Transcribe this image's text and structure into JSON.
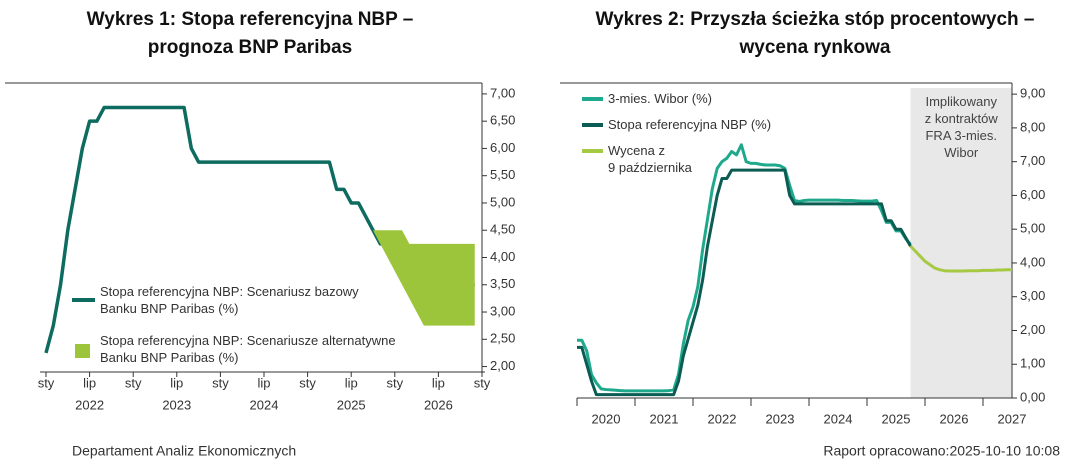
{
  "chart_data": [
    {
      "type": "line",
      "title": "Wykres 1: Stopa referencyjna NBP –\nprognoza BNP Paribas",
      "xlim": [
        "2022-01",
        "2027-01"
      ],
      "ylim": [
        1.9,
        7.2
      ],
      "yticks": [
        {
          "value": 2,
          "label": "2,00"
        },
        {
          "value": 2.5,
          "label": "2,50"
        },
        {
          "value": 3,
          "label": "3,00"
        },
        {
          "value": 3.5,
          "label": "3,50"
        },
        {
          "value": 4,
          "label": "4,00"
        },
        {
          "value": 4.5,
          "label": "4,50"
        },
        {
          "value": 5,
          "label": "5,00"
        },
        {
          "value": 5.5,
          "label": "5,50"
        },
        {
          "value": 6,
          "label": "6,00"
        },
        {
          "value": 6.5,
          "label": "6,50"
        },
        {
          "value": 7,
          "label": "7,00"
        }
      ],
      "xticks": [
        {
          "value": "2022-01",
          "label": "sty"
        },
        {
          "value": "2022-07",
          "label": "lip"
        },
        {
          "value": "2023-01",
          "label": "sty"
        },
        {
          "value": "2023-07",
          "label": "lip"
        },
        {
          "value": "2024-01",
          "label": "sty"
        },
        {
          "value": "2024-07",
          "label": "lip"
        },
        {
          "value": "2025-01",
          "label": "sty"
        },
        {
          "value": "2025-07",
          "label": "lip"
        },
        {
          "value": "2026-01",
          "label": "sty"
        },
        {
          "value": "2026-07",
          "label": "lip"
        },
        {
          "value": "2027-01",
          "label": "sty"
        }
      ],
      "xyears": [
        {
          "value": "2022-07",
          "label": "2022"
        },
        {
          "value": "2023-07",
          "label": "2023"
        },
        {
          "value": "2024-07",
          "label": "2024"
        },
        {
          "value": "2025-07",
          "label": "2025"
        },
        {
          "value": "2026-07",
          "label": "2026"
        }
      ],
      "series": [
        {
          "name": "Stopa referencyjna NBP: Scenariusz bazowy\nBanku BNP Paribas (%)",
          "color": "#0d6b5f",
          "x": [
            "2022-01",
            "2022-02",
            "2022-03",
            "2022-04",
            "2022-05",
            "2022-06",
            "2022-07",
            "2022-08",
            "2022-09",
            "2022-10",
            "2022-11",
            "2022-12",
            "2023-01",
            "2023-02",
            "2023-03",
            "2023-04",
            "2023-05",
            "2023-06",
            "2023-07",
            "2023-08",
            "2023-09",
            "2023-10",
            "2023-11",
            "2023-12",
            "2024-01",
            "2024-02",
            "2024-03",
            "2024-04",
            "2024-05",
            "2024-06",
            "2024-07",
            "2024-08",
            "2024-09",
            "2024-10",
            "2024-11",
            "2024-12",
            "2025-01",
            "2025-02",
            "2025-03",
            "2025-04",
            "2025-05",
            "2025-06",
            "2025-07",
            "2025-08",
            "2025-09",
            "2025-10",
            "2025-11",
            "2025-12",
            "2026-01",
            "2026-02",
            "2026-03",
            "2026-04",
            "2026-05",
            "2026-06",
            "2026-07",
            "2026-08",
            "2026-09",
            "2026-10",
            "2026-11",
            "2026-12"
          ],
          "values": [
            2.25,
            2.75,
            3.5,
            4.5,
            5.25,
            6,
            6.5,
            6.5,
            6.75,
            6.75,
            6.75,
            6.75,
            6.75,
            6.75,
            6.75,
            6.75,
            6.75,
            6.75,
            6.75,
            6.75,
            6,
            5.75,
            5.75,
            5.75,
            5.75,
            5.75,
            5.75,
            5.75,
            5.75,
            5.75,
            5.75,
            5.75,
            5.75,
            5.75,
            5.75,
            5.75,
            5.75,
            5.75,
            5.75,
            5.75,
            5.25,
            5.25,
            5,
            5,
            4.75,
            4.5,
            4.25,
            4.25,
            4,
            4,
            3.75,
            3.75,
            3.75,
            3.5,
            3.5,
            3.5,
            3.5,
            3.5,
            3.5,
            3.5
          ]
        },
        {
          "name": "Stopa referencyjna NBP: Scenariusze alternatywne\nBanku BNP Paribas (%)",
          "color": "#9dc53b",
          "x": [
            "2025-10",
            "2025-11",
            "2025-12",
            "2026-01",
            "2026-02",
            "2026-03",
            "2026-04",
            "2026-05",
            "2026-06",
            "2026-07",
            "2026-08",
            "2026-09",
            "2026-10",
            "2026-11",
            "2026-12"
          ],
          "upper": [
            4.5,
            4.5,
            4.5,
            4.5,
            4.5,
            4.25,
            4.25,
            4.25,
            4.25,
            4.25,
            4.25,
            4.25,
            4.25,
            4.25,
            4.25
          ],
          "lower": [
            4.5,
            4.25,
            4,
            3.75,
            3.5,
            3.25,
            3,
            2.75,
            2.75,
            2.75,
            2.75,
            2.75,
            2.75,
            2.75,
            2.75
          ]
        }
      ]
    },
    {
      "type": "line",
      "title": "Wykres 2: Przyszła ścieżka stóp procentowych –\nwycena rynkowa",
      "xlim": [
        "2020-01",
        "2027-07"
      ],
      "ylim": [
        0,
        9.33
      ],
      "yticks": [
        {
          "value": 0,
          "label": "0,00"
        },
        {
          "value": 1,
          "label": "1,00"
        },
        {
          "value": 2,
          "label": "2,00"
        },
        {
          "value": 3,
          "label": "3,00"
        },
        {
          "value": 4,
          "label": "4,00"
        },
        {
          "value": 5,
          "label": "5,00"
        },
        {
          "value": 6,
          "label": "6,00"
        },
        {
          "value": 7,
          "label": "7,00"
        },
        {
          "value": 8,
          "label": "8,00"
        },
        {
          "value": 9,
          "label": "9,00"
        }
      ],
      "xticks": [
        {
          "value": "2020-07",
          "label": "2020"
        },
        {
          "value": "2021-07",
          "label": "2021"
        },
        {
          "value": "2022-07",
          "label": "2022"
        },
        {
          "value": "2023-07",
          "label": "2023"
        },
        {
          "value": "2024-07",
          "label": "2024"
        },
        {
          "value": "2025-07",
          "label": "2025"
        },
        {
          "value": "2026-07",
          "label": "2026"
        },
        {
          "value": "2027-07",
          "label": "2027"
        }
      ],
      "shade_from": "2025-10",
      "shade_color": "#e8e8e8",
      "annotation": "Implikowany\nz kontraktów\nFRA 3-mies.\nWibor",
      "series": [
        {
          "name": "3-mies. Wibor (%)",
          "color": "#1fa98c",
          "x": [
            "2020-01",
            "2020-02",
            "2020-03",
            "2020-04",
            "2020-05",
            "2020-06",
            "2020-07",
            "2020-08",
            "2020-09",
            "2020-10",
            "2020-11",
            "2020-12",
            "2021-01",
            "2021-02",
            "2021-03",
            "2021-04",
            "2021-05",
            "2021-06",
            "2021-07",
            "2021-08",
            "2021-09",
            "2021-10",
            "2021-11",
            "2021-12",
            "2022-01",
            "2022-02",
            "2022-03",
            "2022-04",
            "2022-05",
            "2022-06",
            "2022-07",
            "2022-08",
            "2022-09",
            "2022-10",
            "2022-11",
            "2022-12",
            "2023-01",
            "2023-02",
            "2023-03",
            "2023-04",
            "2023-05",
            "2023-06",
            "2023-07",
            "2023-08",
            "2023-09",
            "2023-10",
            "2023-11",
            "2023-12",
            "2024-01",
            "2024-02",
            "2024-03",
            "2024-04",
            "2024-05",
            "2024-06",
            "2024-07",
            "2024-08",
            "2024-09",
            "2024-10",
            "2024-11",
            "2024-12",
            "2025-01",
            "2025-02",
            "2025-03",
            "2025-04",
            "2025-05",
            "2025-06",
            "2025-07",
            "2025-08",
            "2025-09",
            "2025-10"
          ],
          "values": [
            1.71,
            1.71,
            1.4,
            0.69,
            0.45,
            0.27,
            0.25,
            0.24,
            0.23,
            0.22,
            0.21,
            0.21,
            0.21,
            0.21,
            0.21,
            0.21,
            0.21,
            0.21,
            0.21,
            0.22,
            0.24,
            0.7,
            1.6,
            2.3,
            2.7,
            3.3,
            4.4,
            5.3,
            6.2,
            6.8,
            7,
            7.1,
            7.3,
            7.2,
            7.5,
            7,
            6.95,
            6.95,
            6.92,
            6.9,
            6.9,
            6.9,
            6.88,
            6.8,
            6.3,
            5.85,
            5.82,
            5.85,
            5.86,
            5.86,
            5.86,
            5.86,
            5.86,
            5.86,
            5.86,
            5.85,
            5.85,
            5.85,
            5.84,
            5.83,
            5.83,
            5.83,
            5.85,
            5.55,
            5.2,
            5.2,
            4.95,
            4.95,
            4.72,
            4.55
          ]
        },
        {
          "name": "Stopa referencyjna NBP (%)",
          "color": "#0b5c53",
          "x": [
            "2020-01",
            "2020-02",
            "2020-03",
            "2020-04",
            "2020-05",
            "2020-06",
            "2020-07",
            "2020-08",
            "2020-09",
            "2020-10",
            "2020-11",
            "2020-12",
            "2021-01",
            "2021-02",
            "2021-03",
            "2021-04",
            "2021-05",
            "2021-06",
            "2021-07",
            "2021-08",
            "2021-09",
            "2021-10",
            "2021-11",
            "2021-12",
            "2022-01",
            "2022-02",
            "2022-03",
            "2022-04",
            "2022-05",
            "2022-06",
            "2022-07",
            "2022-08",
            "2022-09",
            "2022-10",
            "2022-11",
            "2022-12",
            "2023-01",
            "2023-02",
            "2023-03",
            "2023-04",
            "2023-05",
            "2023-06",
            "2023-07",
            "2023-08",
            "2023-09",
            "2023-10",
            "2023-11",
            "2023-12",
            "2024-01",
            "2024-02",
            "2024-03",
            "2024-04",
            "2024-05",
            "2024-06",
            "2024-07",
            "2024-08",
            "2024-09",
            "2024-10",
            "2024-11",
            "2024-12",
            "2025-01",
            "2025-02",
            "2025-03",
            "2025-04",
            "2025-05",
            "2025-06",
            "2025-07",
            "2025-08",
            "2025-09",
            "2025-10"
          ],
          "values": [
            1.5,
            1.5,
            1,
            0.5,
            0.1,
            0.1,
            0.1,
            0.1,
            0.1,
            0.1,
            0.1,
            0.1,
            0.1,
            0.1,
            0.1,
            0.1,
            0.1,
            0.1,
            0.1,
            0.1,
            0.1,
            0.5,
            1.25,
            1.75,
            2.25,
            2.75,
            3.5,
            4.5,
            5.25,
            6,
            6.5,
            6.5,
            6.75,
            6.75,
            6.75,
            6.75,
            6.75,
            6.75,
            6.75,
            6.75,
            6.75,
            6.75,
            6.75,
            6.75,
            6,
            5.75,
            5.75,
            5.75,
            5.75,
            5.75,
            5.75,
            5.75,
            5.75,
            5.75,
            5.75,
            5.75,
            5.75,
            5.75,
            5.75,
            5.75,
            5.75,
            5.75,
            5.75,
            5.75,
            5.25,
            5.25,
            5,
            5,
            4.75,
            4.5
          ]
        },
        {
          "name": "Wycena z\n9 października",
          "color": "#a6c944",
          "x": [
            "2025-10",
            "2025-11",
            "2025-12",
            "2026-01",
            "2026-02",
            "2026-03",
            "2026-04",
            "2026-05",
            "2026-06",
            "2026-07",
            "2026-08",
            "2026-09",
            "2026-10",
            "2026-11",
            "2026-12",
            "2027-01",
            "2027-02",
            "2027-03",
            "2027-04",
            "2027-05",
            "2027-06",
            "2027-07"
          ],
          "values": [
            4.5,
            4.35,
            4.2,
            4.05,
            3.95,
            3.85,
            3.8,
            3.77,
            3.76,
            3.76,
            3.76,
            3.76,
            3.77,
            3.77,
            3.77,
            3.78,
            3.78,
            3.78,
            3.79,
            3.79,
            3.8,
            3.8
          ]
        }
      ]
    }
  ],
  "footer": {
    "left": "Departament Analiz Ekonomicznych",
    "right": "Raport opracowano:2025-10-10 10:08"
  }
}
